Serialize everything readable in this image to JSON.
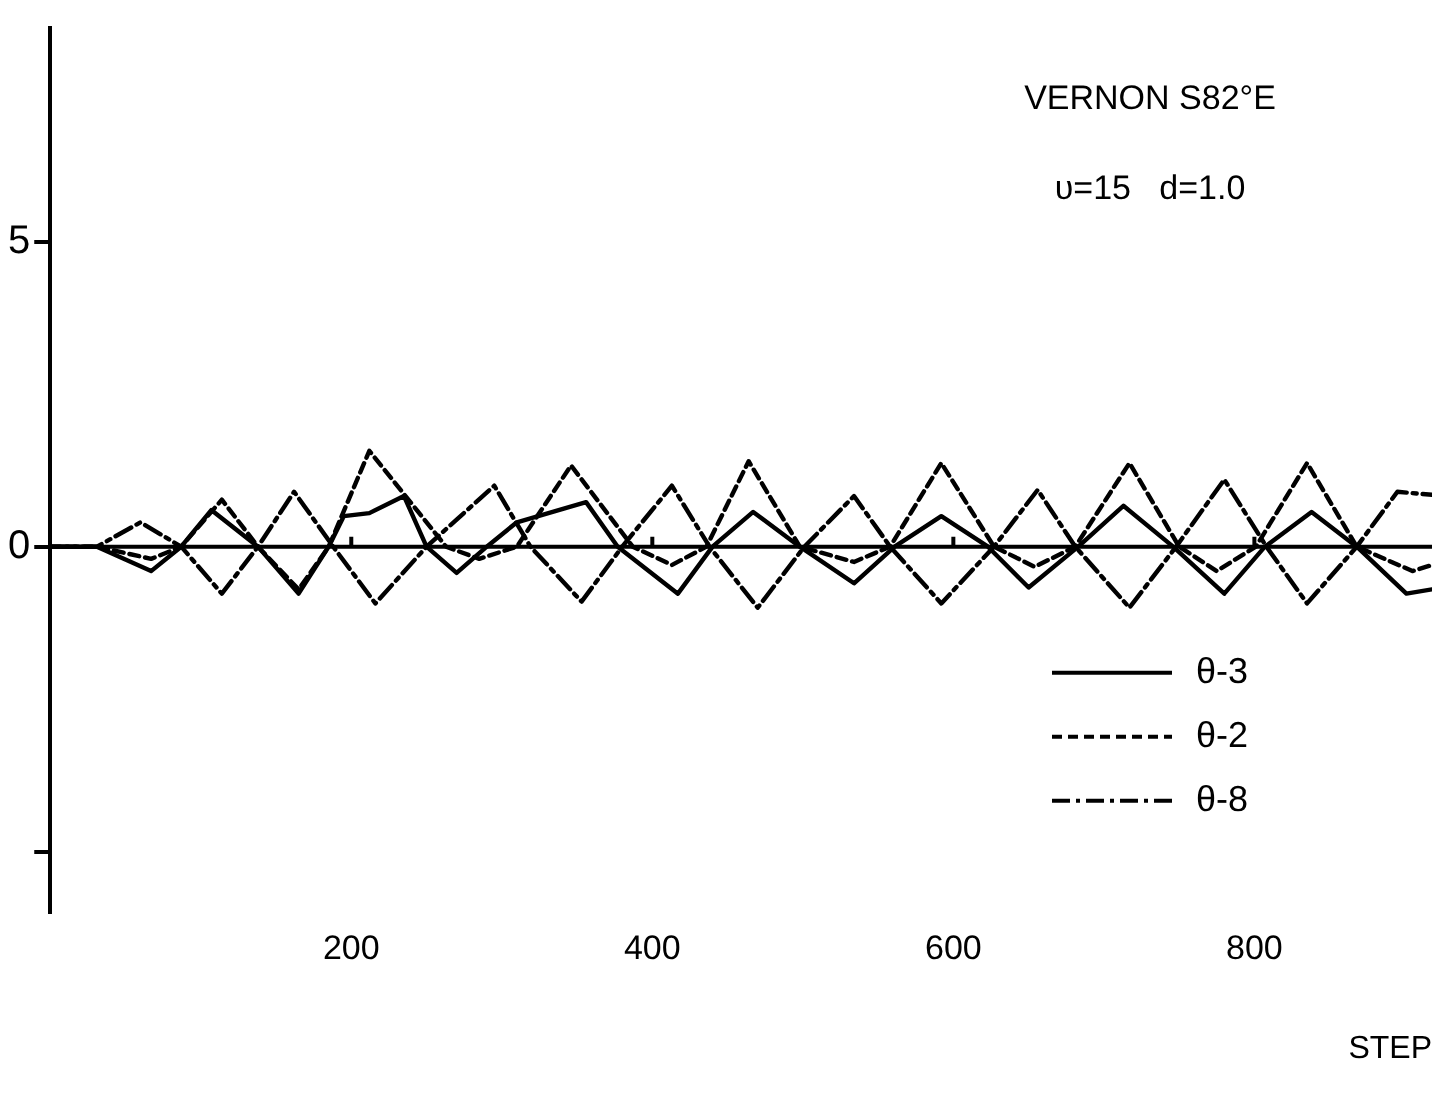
{
  "chart_data": {
    "type": "line",
    "xlabel": "STEP",
    "annotations": [
      "VERNON S82°E",
      "υ=15   d=1.0"
    ],
    "xlim": [
      0,
      918
    ],
    "xticks": [
      200,
      400,
      600,
      800
    ],
    "ylim": [
      -6,
      8.5
    ],
    "yticks": [
      {
        "value": -5,
        "label": null
      },
      0,
      5
    ],
    "grid": false,
    "legend": "bottom right",
    "marker": "none",
    "ref_lines": [
      {
        "axis": "y",
        "value": 0,
        "color": "#000000"
      }
    ],
    "series": [
      {
        "name": "θ-3",
        "color": "#000000",
        "line_style": "solid",
        "x": [
          0,
          31,
          67,
          87,
          107,
          138,
          165,
          185,
          195,
          212,
          235,
          250,
          270,
          290,
          310,
          356,
          377,
          417,
          440,
          467,
          498,
          534,
          561,
          592,
          623,
          650,
          683,
          713,
          746,
          780,
          807,
          838,
          868,
          901,
          918
        ],
        "values": [
          0,
          0,
          -0.4,
          0,
          0.6,
          0,
          -0.77,
          0,
          0.5,
          0.55,
          0.83,
          0,
          -0.43,
          0,
          0.4,
          0.73,
          0,
          -0.77,
          0,
          0.57,
          0,
          -0.6,
          0,
          0.5,
          0,
          -0.67,
          0,
          0.67,
          0,
          -0.77,
          0,
          0.57,
          0,
          -0.77,
          -0.7
        ]
      },
      {
        "name": "θ-2",
        "color": "#000000",
        "line_style": "dashed",
        "x": [
          0,
          31,
          67,
          87,
          114,
          138,
          165,
          185,
          212,
          263,
          285,
          310,
          346,
          387,
          413,
          436,
          464,
          498,
          534,
          558,
          592,
          627,
          654,
          681,
          717,
          750,
          775,
          801,
          835,
          868,
          905,
          918
        ],
        "values": [
          0,
          0,
          -0.2,
          0,
          0.77,
          0,
          -0.7,
          0,
          1.57,
          0,
          -0.2,
          0,
          1.33,
          0,
          -0.3,
          0,
          1.4,
          0,
          -0.25,
          0,
          1.37,
          0,
          -0.33,
          0,
          1.37,
          0,
          -0.4,
          0,
          1.37,
          0,
          -0.4,
          -0.3
        ]
      },
      {
        "name": "θ-8",
        "color": "#000000",
        "line_style": "dashdot",
        "x": [
          0,
          31,
          60,
          87,
          114,
          138,
          162,
          188,
          216,
          250,
          295,
          319,
          353,
          380,
          413,
          438,
          470,
          501,
          534,
          558,
          592,
          627,
          656,
          681,
          717,
          748,
          780,
          808,
          835,
          868,
          895,
          918
        ],
        "values": [
          0,
          0,
          0.4,
          0,
          -0.77,
          0,
          0.9,
          0,
          -0.93,
          0,
          1.0,
          0,
          -0.9,
          0,
          1.0,
          0,
          -1.0,
          0,
          0.83,
          0,
          -0.93,
          0,
          0.93,
          0,
          -1.0,
          0,
          1.1,
          0,
          -0.93,
          0,
          0.9,
          0.85
        ]
      }
    ]
  }
}
